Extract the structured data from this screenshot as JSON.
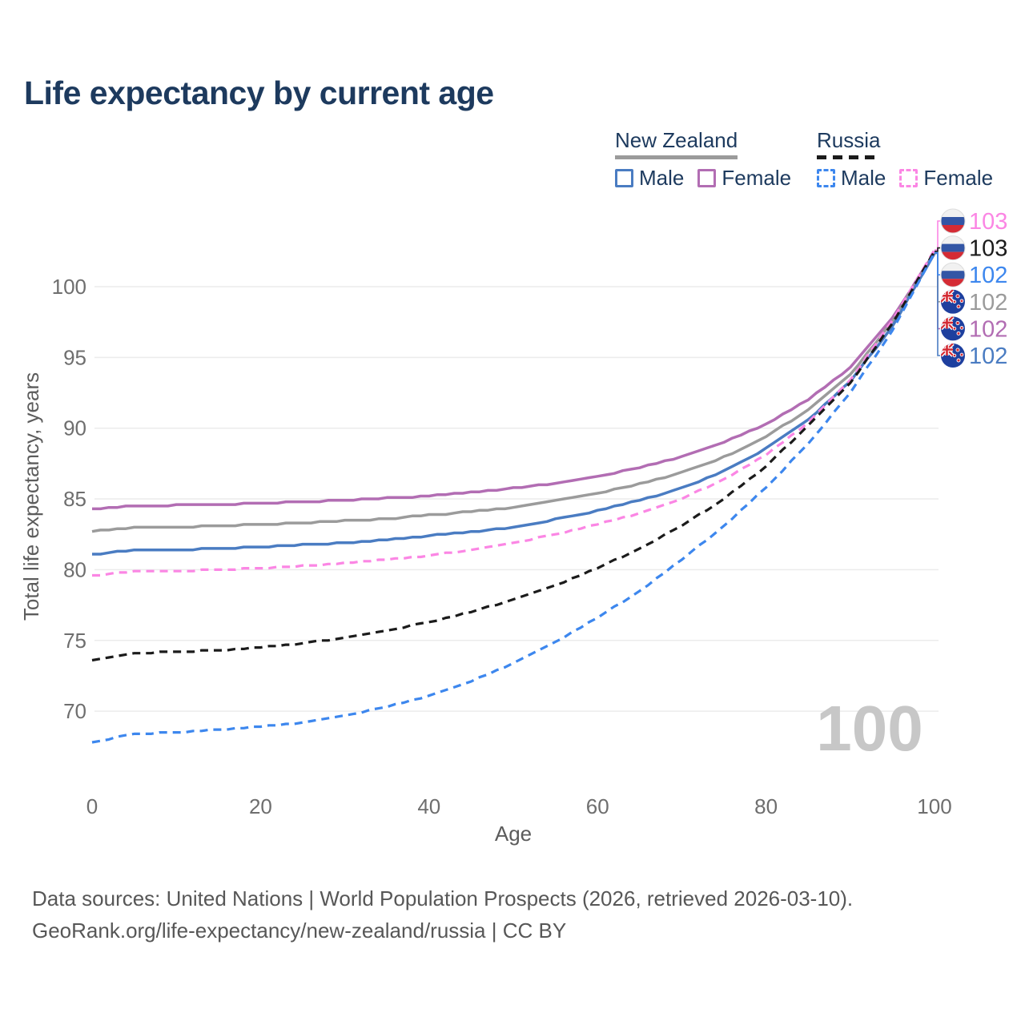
{
  "page": {
    "title": "Life expectancy by current age",
    "age_watermark": "100"
  },
  "legend": {
    "groups": [
      {
        "country": "New Zealand",
        "line_style": "solid",
        "underline_color": "#9b9b9b",
        "items": [
          {
            "label": "Male",
            "color": "#4a7cc2"
          },
          {
            "label": "Female",
            "color": "#b26db3"
          }
        ]
      },
      {
        "country": "Russia",
        "line_style": "dashed",
        "underline_color": "#1b1b1b",
        "items": [
          {
            "label": "Male",
            "color": "#3d87ee"
          },
          {
            "label": "Female",
            "color": "#fb86e4"
          }
        ]
      }
    ]
  },
  "footer": {
    "line1": "Data sources: United Nations | World Population Prospects (2026, retrieved 2026-03-10).",
    "line2": "GeoRank.org/life-expectancy/new-zealand/russia | CC BY"
  },
  "chart_data": {
    "type": "line",
    "title": "Life expectancy by current age",
    "xlabel": "Age",
    "ylabel": "Total life expectancy, years",
    "xlim": [
      0,
      100
    ],
    "ylim": [
      66.5,
      103.5
    ],
    "x_ticks": [
      0,
      20,
      40,
      60,
      80,
      100
    ],
    "y_ticks": [
      70,
      75,
      80,
      85,
      90,
      95,
      100
    ],
    "grid": "horizontal-only",
    "legend_position": "top-right",
    "x": [
      0,
      5,
      10,
      15,
      20,
      25,
      30,
      35,
      40,
      45,
      50,
      55,
      60,
      65,
      70,
      75,
      80,
      85,
      90,
      95,
      100
    ],
    "series": [
      {
        "id": "nz-female",
        "name": "New Zealand Female",
        "country": "New Zealand",
        "sex": "Female",
        "color": "#b26db3",
        "dash": false,
        "flag": "new-zealand-flag-icon",
        "end_label": "102",
        "label_order": 5,
        "values": [
          84.3,
          84.5,
          84.55,
          84.6,
          84.7,
          84.8,
          84.9,
          85.05,
          85.2,
          85.45,
          85.75,
          86.1,
          86.6,
          87.2,
          87.95,
          89.0,
          90.3,
          92.0,
          94.3,
          97.8,
          102.4
        ]
      },
      {
        "id": "nz-total",
        "name": "New Zealand Total",
        "country": "New Zealand",
        "sex": "Total",
        "color": "#9b9b9b",
        "dash": false,
        "flag": "new-zealand-flag-icon",
        "end_label": "102",
        "label_order": 4,
        "values": [
          82.7,
          82.95,
          83.0,
          83.1,
          83.2,
          83.3,
          83.45,
          83.6,
          83.85,
          84.1,
          84.4,
          84.85,
          85.4,
          86.05,
          86.85,
          87.95,
          89.4,
          91.3,
          93.8,
          97.5,
          102.4
        ]
      },
      {
        "id": "nz-male",
        "name": "New Zealand Male",
        "country": "New Zealand",
        "sex": "Male",
        "color": "#4a7cc2",
        "dash": false,
        "flag": "new-zealand-flag-icon",
        "end_label": "102",
        "label_order": 6,
        "values": [
          81.1,
          81.35,
          81.4,
          81.5,
          81.6,
          81.75,
          81.9,
          82.1,
          82.4,
          82.65,
          83.0,
          83.55,
          84.15,
          84.9,
          85.75,
          86.95,
          88.55,
          90.6,
          93.3,
          97.2,
          102.35
        ]
      },
      {
        "id": "ru-female",
        "name": "Russia Female",
        "country": "Russia",
        "sex": "Female",
        "color": "#fb86e4",
        "dash": true,
        "flag": "russia-flag-icon",
        "end_label": "103",
        "label_order": 1,
        "values": [
          79.6,
          79.85,
          79.9,
          80.0,
          80.1,
          80.25,
          80.45,
          80.7,
          81.0,
          81.4,
          81.9,
          82.5,
          83.2,
          84.0,
          85.0,
          86.4,
          88.1,
          90.4,
          93.4,
          97.6,
          102.6
        ]
      },
      {
        "id": "ru-total",
        "name": "Russia Total",
        "country": "Russia",
        "sex": "Total",
        "color": "#1b1b1b",
        "dash": true,
        "flag": "russia-flag-icon",
        "end_label": "103",
        "label_order": 2,
        "values": [
          73.6,
          74.1,
          74.2,
          74.3,
          74.5,
          74.8,
          75.2,
          75.7,
          76.3,
          77.0,
          77.9,
          78.9,
          80.1,
          81.5,
          83.1,
          85.0,
          87.3,
          90.2,
          93.2,
          97.4,
          102.5
        ]
      },
      {
        "id": "ru-male",
        "name": "Russia Male",
        "country": "Russia",
        "sex": "Male",
        "color": "#3d87ee",
        "dash": true,
        "flag": "russia-flag-icon",
        "end_label": "102",
        "label_order": 3,
        "values": [
          67.8,
          68.4,
          68.5,
          68.7,
          68.9,
          69.2,
          69.7,
          70.3,
          71.1,
          72.1,
          73.4,
          74.9,
          76.6,
          78.5,
          80.7,
          83.1,
          85.8,
          88.9,
          92.5,
          96.9,
          102.4
        ]
      }
    ]
  }
}
